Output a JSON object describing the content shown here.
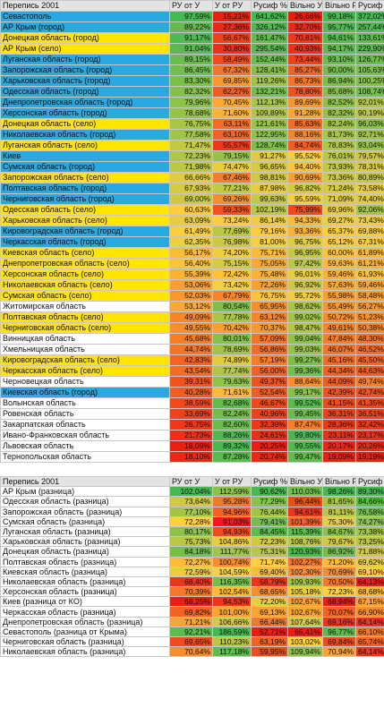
{
  "tables": [
    {
      "header": [
        "Перепись 2001",
        "РУ от У",
        "У от РУ",
        "Русиф %",
        "Вільно У",
        "Вільно РУ",
        "Русиф %"
      ],
      "name_colors": [
        "#2aa8e0",
        "#2aa8e0",
        "#ffe600",
        "#ffe600",
        "#2aa8e0",
        "#2aa8e0",
        "#2aa8e0",
        "#2aa8e0",
        "#2aa8e0",
        "#2aa8e0",
        "#ffe600",
        "#2aa8e0",
        "#ffe600",
        "#2aa8e0",
        "#2aa8e0",
        "#ffe600",
        "#2aa8e0",
        "#2aa8e0",
        "#ffe600",
        "#ffe600",
        "#2aa8e0",
        "#2aa8e0",
        "#ffe600",
        "#ffe600",
        "#ffe600",
        "#ffe600",
        "#ffe600",
        "#ffffff",
        "#ffe600",
        "#ffe600",
        "#ffffff",
        "#ffffff",
        "#ffe600",
        "#ffe600",
        "#ffffff",
        "#2aa8e0",
        "#ffffff",
        "#ffffff",
        "#ffffff",
        "#ffffff",
        "#ffffff",
        "#ffffff"
      ],
      "rows": [
        [
          "Севастополь",
          "97,59%",
          "15,21%",
          "641,62%",
          "26,66%",
          "99,18%",
          "372,02%"
        ],
        [
          "АР Крым (город)",
          "89,22%",
          "27,36%",
          "326,12%",
          "32,70%",
          "95,77%",
          "257,44%"
        ],
        [
          "Донецкая область (город)",
          "91,17%",
          "56,67%",
          "161,47%",
          "70,81%",
          "94,61%",
          "133,61%"
        ],
        [
          "АР Крым (село)",
          "91,04%",
          "30,80%",
          "295,54%",
          "40,93%",
          "94,17%",
          "229,90%"
        ],
        [
          "Луганская область (город)",
          "89,15%",
          "58,49%",
          "152,44%",
          "73,44%",
          "93,10%",
          "126,77%"
        ],
        [
          "Запорожская область (город)",
          "86,45%",
          "67,32%",
          "128,41%",
          "85,27%",
          "90,00%",
          "105,63%"
        ],
        [
          "Харьковская область (город)",
          "83,30%",
          "69,85%",
          "119,26%",
          "86,73%",
          "86,94%",
          "100,25%"
        ],
        [
          "Одесская область (город)",
          "82,32%",
          "62,27%",
          "132,21%",
          "78,80%",
          "85,68%",
          "108,74%"
        ],
        [
          "Днепропетровская область (город)",
          "79,96%",
          "70,45%",
          "112,13%",
          "89,69%",
          "82,52%",
          "92,01%"
        ],
        [
          "Херсонская область (город)",
          "78,68%",
          "71,60%",
          "109,89%",
          "91,28%",
          "82,32%",
          "90,19%"
        ],
        [
          "Донецкая область (село)",
          "76,75%",
          "63,11%",
          "121,61%",
          "85,63%",
          "82,24%",
          "96,03%"
        ],
        [
          "Николаевская область (город)",
          "77,58%",
          "63,10%",
          "122,95%",
          "88,16%",
          "81,73%",
          "92,71%"
        ],
        [
          "Луганская область (село)",
          "71,47%",
          "55,57%",
          "128,74%",
          "84,74%",
          "78,83%",
          "93,04%"
        ],
        [
          "Киев",
          "72,23%",
          "79,15%",
          "91,27%",
          "95,52%",
          "76,01%",
          "79,57%"
        ],
        [
          "Сумская область (город)",
          "71,98%",
          "74,47%",
          "96,65%",
          "94,40%",
          "73,93%",
          "78,31%"
        ],
        [
          "Запорожская область (село)",
          "66,66%",
          "67,46%",
          "98,81%",
          "90,69%",
          "73,36%",
          "80,89%"
        ],
        [
          "Полтавская область (город)",
          "67,93%",
          "77,21%",
          "87,98%",
          "96,82%",
          "71,24%",
          "73,58%"
        ],
        [
          "Черниговская область (город)",
          "69,00%",
          "69,26%",
          "99,63%",
          "95,59%",
          "71,09%",
          "74,40%"
        ],
        [
          "Одесская область (село)",
          "60,63%",
          "59,33%",
          "102,19%",
          "75,99%",
          "69,96%",
          "92,06%"
        ],
        [
          "Харьковская область (село)",
          "63,09%",
          "73,24%",
          "86,14%",
          "94,33%",
          "69,27%",
          "73,43%"
        ],
        [
          "Кировоградская область (город)",
          "61,49%",
          "77,69%",
          "79,16%",
          "93,36%",
          "65,37%",
          "69,88%"
        ],
        [
          "Черкасская область (город)",
          "62,35%",
          "76,98%",
          "81,00%",
          "96,75%",
          "65,12%",
          "67,31%"
        ],
        [
          "Киевская область (село)",
          "56,17%",
          "74,20%",
          "75,71%",
          "96,95%",
          "60,00%",
          "61,89%"
        ],
        [
          "Днепропетровская область (село)",
          "56,40%",
          "75,15%",
          "75,05%",
          "97,42%",
          "59,63%",
          "61,21%"
        ],
        [
          "Херсонская область (село)",
          "55,39%",
          "72,42%",
          "75,48%",
          "96,01%",
          "59,46%",
          "61,93%"
        ],
        [
          "Николаевская область (село)",
          "53,06%",
          "73,42%",
          "72,26%",
          "96,92%",
          "57,63%",
          "59,46%"
        ],
        [
          "Сумская область (село)",
          "52,03%",
          "67,79%",
          "76,75%",
          "95,72%",
          "55,98%",
          "58,48%"
        ],
        [
          "Житомирская область",
          "53,12%",
          "80,54%",
          "65,95%",
          "98,62%",
          "55,49%",
          "56,27%"
        ],
        [
          "Полтавская область (село)",
          "49,09%",
          "77,78%",
          "63,12%",
          "99,02%",
          "50,72%",
          "51,23%"
        ],
        [
          "Черниговская область (село)",
          "49,55%",
          "70,42%",
          "70,37%",
          "98,47%",
          "49,61%",
          "50,38%"
        ],
        [
          "Винницкая область",
          "45,68%",
          "80,01%",
          "57,09%",
          "99,04%",
          "47,84%",
          "48,30%"
        ],
        [
          "Хмельницкая область",
          "44,74%",
          "78,69%",
          "56,86%",
          "99,03%",
          "46,07%",
          "46,52%"
        ],
        [
          "Кировоградская область (село)",
          "42,83%",
          "74,89%",
          "57,19%",
          "99,27%",
          "45,16%",
          "45,50%"
        ],
        [
          "Черкасская область (село)",
          "43,54%",
          "77,74%",
          "56,00%",
          "99,36%",
          "44,34%",
          "44,63%"
        ],
        [
          "Черновецкая область",
          "39,31%",
          "79,63%",
          "49,37%",
          "88,64%",
          "44,09%",
          "49,74%"
        ],
        [
          "Киевская область (город)",
          "40,28%",
          "71,61%",
          "52,54%",
          "99,17%",
          "42,39%",
          "42,74%"
        ],
        [
          "Волынская область",
          "38,59%",
          "82,68%",
          "46,67%",
          "99,52%",
          "41,15%",
          "41,35%"
        ],
        [
          "Ровенская область",
          "33,69%",
          "82,24%",
          "40,96%",
          "99,45%",
          "36,31%",
          "36,51%"
        ],
        [
          "Закарпатская область",
          "26,75%",
          "82,60%",
          "32,39%",
          "87,47%",
          "28,36%",
          "32,42%"
        ],
        [
          "Ивано-Франковская область",
          "21,73%",
          "88,26%",
          "24,61%",
          "99,80%",
          "23,11%",
          "23,17%"
        ],
        [
          "Львовская область",
          "18,09%",
          "89,32%",
          "20,25%",
          "99,55%",
          "20,17%",
          "20,26%"
        ],
        [
          "Тернопольская область",
          "18,10%",
          "87,28%",
          "20,74%",
          "99,47%",
          "19,09%",
          "19,19%"
        ]
      ]
    },
    {
      "header": [
        "Перепись 2001",
        "РУ от У",
        "У от РУ",
        "Русиф %",
        "Вільно У",
        "Вільно РУ",
        "Русиф %"
      ],
      "name_color": "#ffffff",
      "rows": [
        [
          "АР Крым (разница)",
          "102,04%",
          "112,59%",
          "90,62%",
          "110,03%",
          "98,26%",
          "89,30%"
        ],
        [
          "Одесская область (разница)",
          "73,64%",
          "95,28%",
          "77,29%",
          "96,44%",
          "81,65%",
          "84,66%"
        ],
        [
          "Запорожская область (разница)",
          "77,10%",
          "94,96%",
          "76,44%",
          "94,61%",
          "81,11%",
          "76,58%"
        ],
        [
          "Сумская область (разница)",
          "72,28%",
          "91,03%",
          "79,41%",
          "101,39%",
          "75,30%",
          "74,27%"
        ],
        [
          "Луганская область (разница)",
          "80,17%",
          "94,93%",
          "84,45%",
          "115,39%",
          "84,67%",
          "73,38%"
        ],
        [
          "Харьковская область (разница)",
          "75,73%",
          "104,86%",
          "72,23%",
          "108,76%",
          "79,67%",
          "73,25%"
        ],
        [
          "Донецкая область (разница)",
          "84,18%",
          "111,77%",
          "75,31%",
          "120,93%",
          "86,92%",
          "71,88%"
        ],
        [
          "Полтавская область (разница)",
          "72,27%",
          "100,74%",
          "71,74%",
          "102,27%",
          "71,20%",
          "69,62%"
        ],
        [
          "Киевская область (разница)",
          "72,59%",
          "104,59%",
          "69,40%",
          "102,30%",
          "70,69%",
          "69,10%"
        ],
        [
          "Николаевская область (разница)",
          "68,40%",
          "116,35%",
          "58,79%",
          "109,93%",
          "70,50%",
          "64,13%"
        ],
        [
          "Херсонская область (разница)",
          "70,39%",
          "102,54%",
          "68,65%",
          "105,18%",
          "72,23%",
          "68,68%"
        ],
        [
          "Киев (разница от КО)",
          "68,25%",
          "94,53%",
          "72,20%",
          "102,67%",
          "68,94%",
          "67,15%"
        ],
        [
          "Черкасская область (разница)",
          "69,82%",
          "101,00%",
          "69,13%",
          "102,67%",
          "70,07%",
          "66,90%"
        ],
        [
          "Днепропетровская область (разница)",
          "71,21%",
          "106,66%",
          "66,44%",
          "107,64%",
          "69,16%",
          "64,14%"
        ],
        [
          "Севастополь (разница от Крыма)",
          "92,21%",
          "186,59%",
          "52,71%",
          "65,41%",
          "96,77%",
          "66,10%"
        ],
        [
          "Черниговская область (разница)",
          "69,65%",
          "110,23%",
          "63,19%",
          "103,02%",
          "69,84%",
          "65,74%"
        ],
        [
          "Николаевская область (разница)",
          "70,64%",
          "117,18%",
          "59,95%",
          "109,94%",
          "70,94%",
          "64,14%"
        ]
      ]
    }
  ]
}
